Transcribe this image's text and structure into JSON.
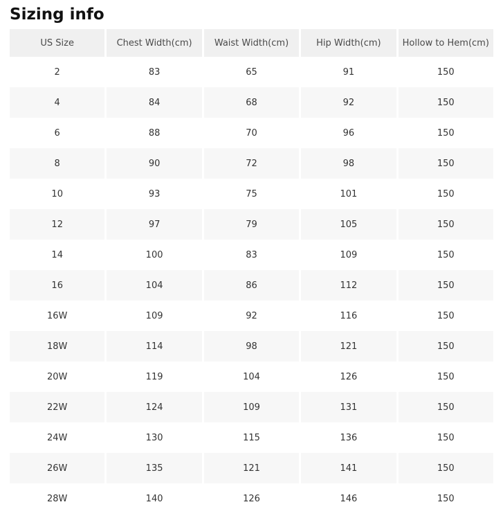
{
  "page": {
    "title": "Sizing info"
  },
  "table": {
    "columns": [
      "US Size",
      "Chest Width(cm)",
      "Waist Width(cm)",
      "Hip Width(cm)",
      "Hollow to Hem(cm)"
    ],
    "rows": [
      [
        "2",
        "83",
        "65",
        "91",
        "150"
      ],
      [
        "4",
        "84",
        "68",
        "92",
        "150"
      ],
      [
        "6",
        "88",
        "70",
        "96",
        "150"
      ],
      [
        "8",
        "90",
        "72",
        "98",
        "150"
      ],
      [
        "10",
        "93",
        "75",
        "101",
        "150"
      ],
      [
        "12",
        "97",
        "79",
        "105",
        "150"
      ],
      [
        "14",
        "100",
        "83",
        "109",
        "150"
      ],
      [
        "16",
        "104",
        "86",
        "112",
        "150"
      ],
      [
        "16W",
        "109",
        "92",
        "116",
        "150"
      ],
      [
        "18W",
        "114",
        "98",
        "121",
        "150"
      ],
      [
        "20W",
        "119",
        "104",
        "126",
        "150"
      ],
      [
        "22W",
        "124",
        "109",
        "131",
        "150"
      ],
      [
        "24W",
        "130",
        "115",
        "136",
        "150"
      ],
      [
        "26W",
        "135",
        "121",
        "141",
        "150"
      ],
      [
        "28W",
        "140",
        "126",
        "146",
        "150"
      ]
    ]
  },
  "colors": {
    "header_bg": "#f0f0f0",
    "alt_row_bg": "#f7f7f7",
    "header_text": "#4a4a4a",
    "cell_text": "#333333",
    "title_text": "#111111"
  }
}
